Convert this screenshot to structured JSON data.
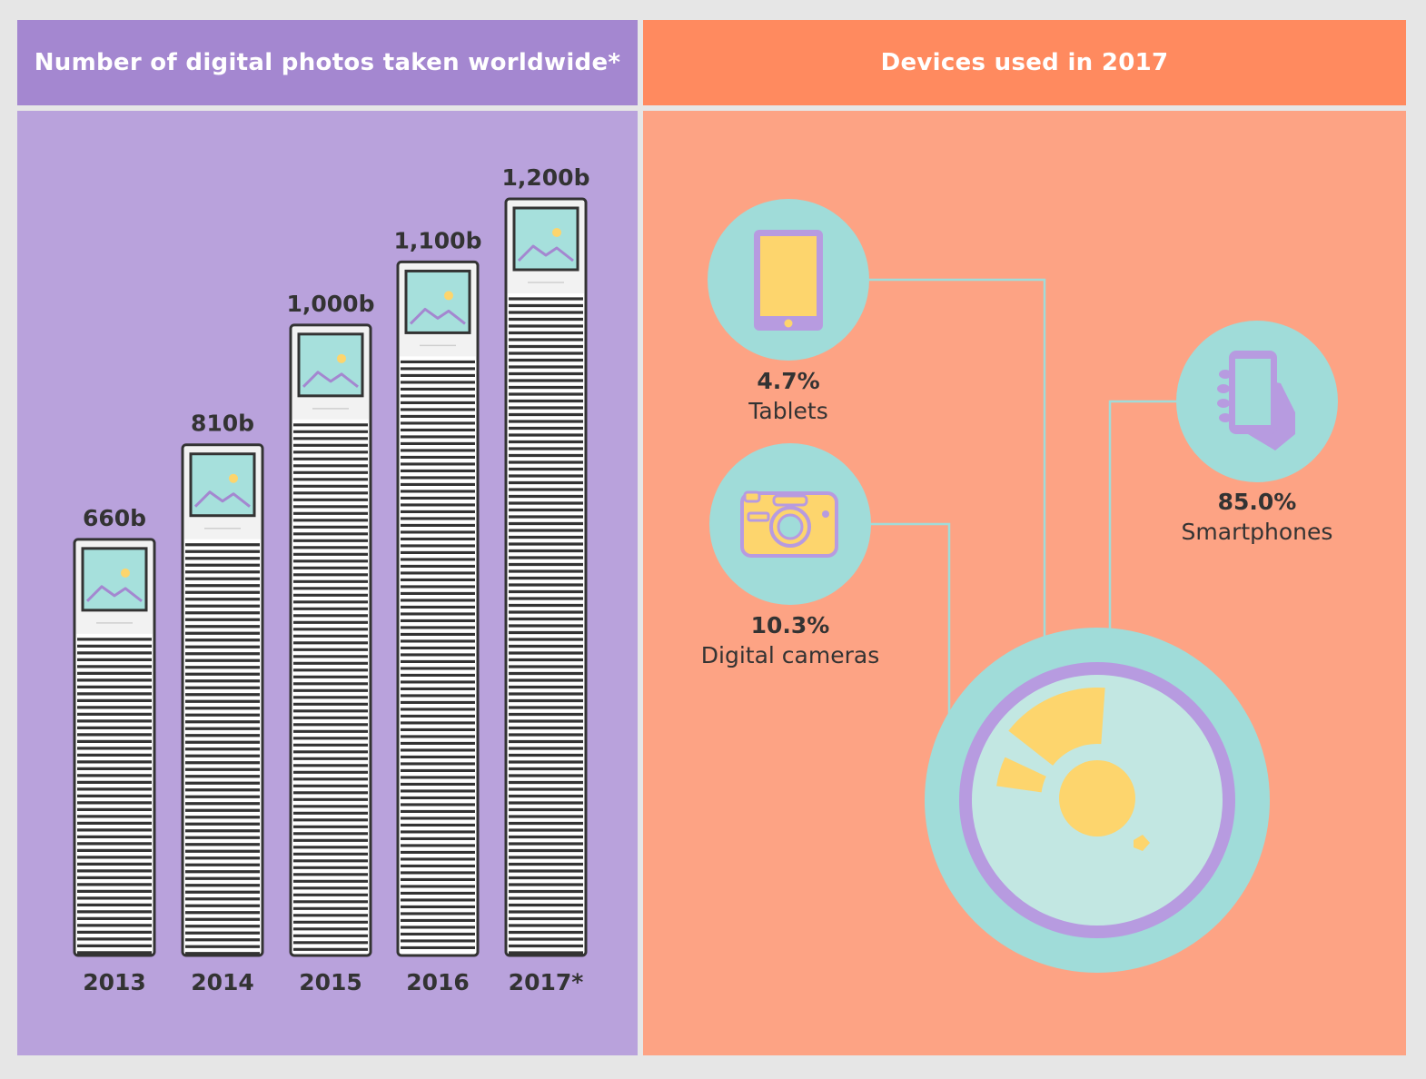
{
  "left_title": "Number of digital photos taken worldwide*",
  "right_title": "Devices used in 2017",
  "colors": {
    "left_header": "#a487d0",
    "left_panel": "#b9a2dc",
    "right_header": "#ff8a5f",
    "right_panel": "#fda384",
    "teal": "#a0dcd9",
    "yellow": "#fdd56d",
    "purple": "#b79be0",
    "dark": "#333333"
  },
  "chart_data": [
    {
      "type": "bar",
      "title": "Number of digital photos taken worldwide*",
      "categories": [
        "2013",
        "2014",
        "2015",
        "2016",
        "2017*"
      ],
      "values": [
        660,
        810,
        1000,
        1100,
        1200
      ],
      "value_labels": [
        "660b",
        "810b",
        "1,000b",
        "1,100b",
        "1,200b"
      ],
      "units": "billions",
      "grid": false,
      "icon": "photo-stack-icon"
    },
    {
      "type": "pie",
      "title": "Devices used in 2017",
      "slices": [
        {
          "label": "Tablets",
          "value": 4.7,
          "value_label": "4.7%",
          "icon": "tablet-icon"
        },
        {
          "label": "Digital cameras",
          "value": 10.3,
          "value_label": "10.3%",
          "icon": "camera-icon"
        },
        {
          "label": "Smartphones",
          "value": 85.0,
          "value_label": "85.0%",
          "icon": "smartphone-icon"
        }
      ]
    }
  ]
}
